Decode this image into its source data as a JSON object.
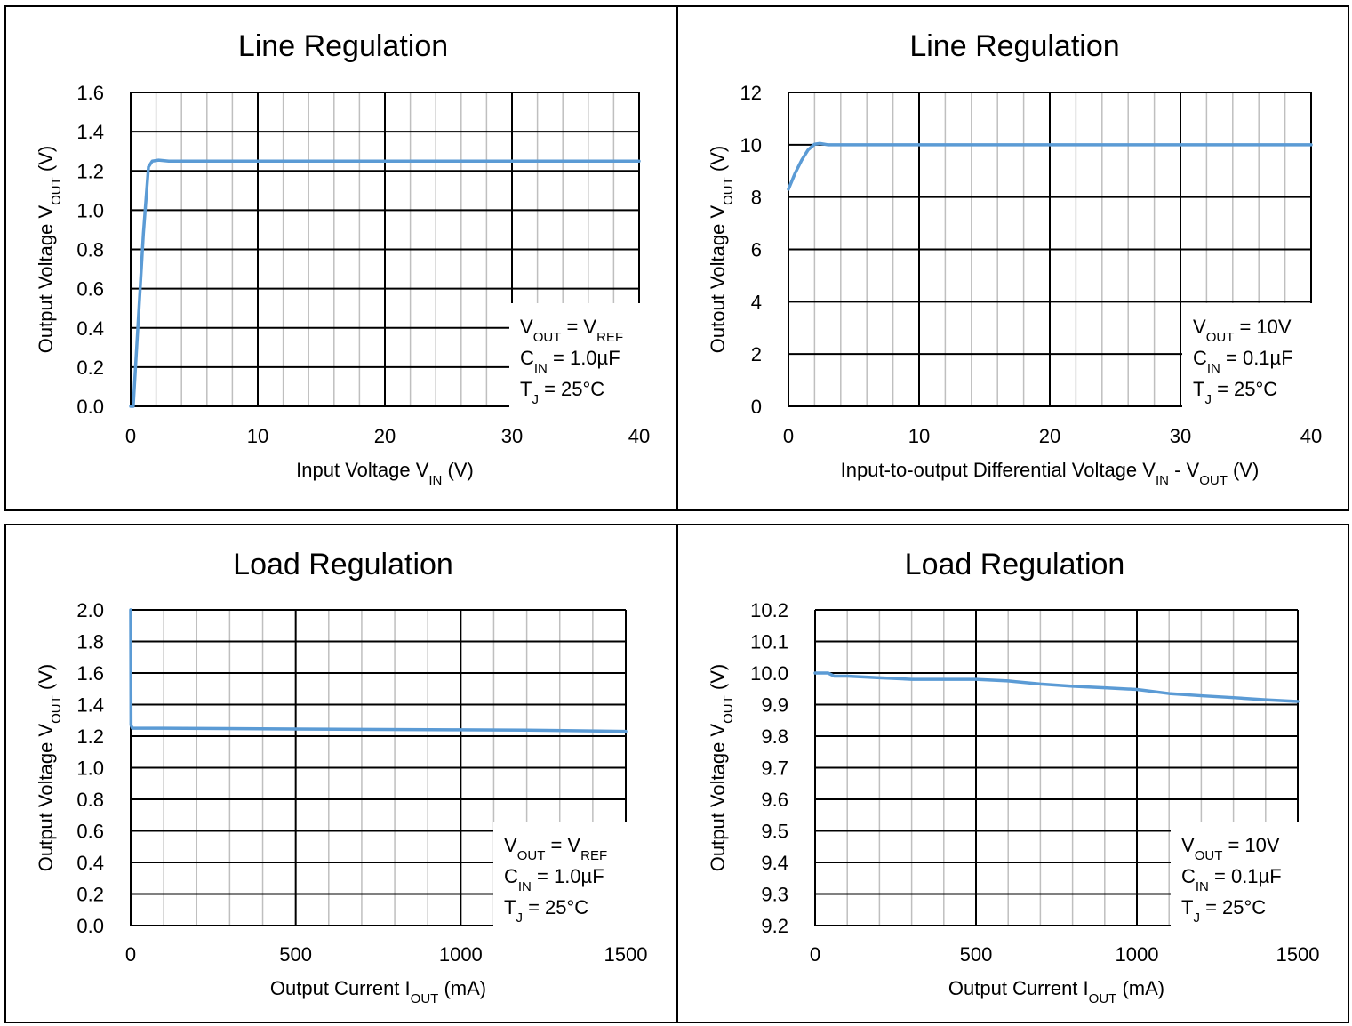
{
  "colors": {
    "series": "#5b9bd5",
    "major_grid": "#000000",
    "minor_grid": "#bfbfbf",
    "background": "#ffffff"
  },
  "chart_data": [
    {
      "type": "line",
      "title": "Line Regulation",
      "xlabel": {
        "main": "Input Voltage V",
        "sub": "IN",
        "tail": " (V)"
      },
      "ylabel": {
        "main": "Output Voltage V",
        "sub": "OUT",
        "tail": " (V)"
      },
      "xlim": [
        0,
        40
      ],
      "ylim": [
        0,
        1.6
      ],
      "xticks": [
        0,
        10,
        20,
        30,
        40
      ],
      "xtick_labels": [
        "0",
        "10",
        "20",
        "30",
        "40"
      ],
      "yticks": [
        0,
        0.2,
        0.4,
        0.6,
        0.8,
        1.0,
        1.2,
        1.4,
        1.6
      ],
      "ytick_labels": [
        "0.0",
        "0.2",
        "0.4",
        "0.6",
        "0.8",
        "1.0",
        "1.2",
        "1.4",
        "1.6"
      ],
      "minor_x_step": 2,
      "grid": true,
      "legend": {
        "position": "bottom-right",
        "lines": [
          {
            "parts": [
              [
                "V",
                ""
              ],
              [
                "OUT",
                "sub"
              ],
              [
                " = V",
                ""
              ],
              [
                "REF",
                "sub"
              ]
            ]
          },
          {
            "parts": [
              [
                "C",
                ""
              ],
              [
                "IN",
                "sub"
              ],
              [
                " = 1.0µF",
                ""
              ]
            ]
          },
          {
            "parts": [
              [
                "T",
                ""
              ],
              [
                "J",
                "sub"
              ],
              [
                " = 25°C",
                ""
              ]
            ]
          }
        ]
      },
      "series": [
        {
          "x": [
            0,
            0.2,
            1.0,
            1.4,
            1.7,
            2.2,
            3,
            10,
            20,
            30,
            40
          ],
          "y": [
            0,
            0,
            0.88,
            1.22,
            1.25,
            1.255,
            1.25,
            1.25,
            1.25,
            1.25,
            1.25
          ]
        }
      ]
    },
    {
      "type": "line",
      "title": "Line Regulation",
      "xlabel": {
        "main": "Input-to-output Differential Voltage V",
        "sub": "IN",
        "tail": " - V",
        "sub2": "OUT",
        "tail2": " (V)"
      },
      "ylabel": {
        "main": "Outout Voltage V",
        "sub": "OUT",
        "tail": " (V)"
      },
      "xlim": [
        0,
        40
      ],
      "ylim": [
        0,
        12
      ],
      "xticks": [
        0,
        10,
        20,
        30,
        40
      ],
      "xtick_labels": [
        "0",
        "10",
        "20",
        "30",
        "40"
      ],
      "yticks": [
        0,
        2,
        4,
        6,
        8,
        10,
        12
      ],
      "ytick_labels": [
        "0",
        "2",
        "4",
        "6",
        "8",
        "10",
        "12"
      ],
      "minor_x_step": 2,
      "grid": true,
      "legend": {
        "position": "bottom-right",
        "lines": [
          {
            "parts": [
              [
                "V",
                ""
              ],
              [
                "OUT",
                "sub"
              ],
              [
                " = 10V",
                ""
              ]
            ]
          },
          {
            "parts": [
              [
                "C",
                ""
              ],
              [
                "IN",
                "sub"
              ],
              [
                " = 0.1µF",
                ""
              ]
            ]
          },
          {
            "parts": [
              [
                "T",
                ""
              ],
              [
                "J",
                "sub"
              ],
              [
                " = 25°C",
                ""
              ]
            ]
          }
        ]
      },
      "series": [
        {
          "x": [
            0,
            0.5,
            1.0,
            1.5,
            2.0,
            2.4,
            3,
            10,
            20,
            30,
            40
          ],
          "y": [
            8.3,
            8.9,
            9.4,
            9.8,
            10.02,
            10.05,
            10.0,
            10.0,
            10.0,
            10.0,
            10.0
          ]
        }
      ]
    },
    {
      "type": "line",
      "title": "Load Regulation",
      "xlabel": {
        "main": "Output Current I",
        "sub": "OUT",
        "tail": " (mA)"
      },
      "ylabel": {
        "main": "Output Voltage V",
        "sub": "OUT",
        "tail": " (V)"
      },
      "xlim": [
        0,
        1500
      ],
      "ylim": [
        0,
        2.0
      ],
      "xticks": [
        0,
        500,
        1000,
        1500
      ],
      "xtick_labels": [
        "0",
        "500",
        "1000",
        "1500"
      ],
      "yticks": [
        0,
        0.2,
        0.4,
        0.6,
        0.8,
        1.0,
        1.2,
        1.4,
        1.6,
        1.8,
        2.0
      ],
      "ytick_labels": [
        "0.0",
        "0.2",
        "0.4",
        "0.6",
        "0.8",
        "1.0",
        "1.2",
        "1.4",
        "1.6",
        "1.8",
        "2.0"
      ],
      "minor_x_step": 100,
      "grid": true,
      "legend": {
        "position": "bottom-right",
        "lines": [
          {
            "parts": [
              [
                "V",
                ""
              ],
              [
                "OUT",
                "sub"
              ],
              [
                " = V",
                ""
              ],
              [
                "REF",
                "sub"
              ]
            ]
          },
          {
            "parts": [
              [
                "C",
                ""
              ],
              [
                "IN",
                "sub"
              ],
              [
                " = 1.0µF",
                ""
              ]
            ]
          },
          {
            "parts": [
              [
                "T",
                ""
              ],
              [
                "J",
                "sub"
              ],
              [
                " = 25°C",
                ""
              ]
            ]
          }
        ]
      },
      "series": [
        {
          "x": [
            0,
            1,
            5,
            100,
            500,
            1000,
            1200,
            1500
          ],
          "y": [
            2.0,
            1.27,
            1.25,
            1.25,
            1.245,
            1.24,
            1.238,
            1.23
          ]
        }
      ]
    },
    {
      "type": "line",
      "title": "Load Regulation",
      "xlabel": {
        "main": "Output Current I",
        "sub": "OUT",
        "tail": " (mA)"
      },
      "ylabel": {
        "main": "Output Voltage V",
        "sub": "OUT",
        "tail": " (V)"
      },
      "xlim": [
        0,
        1500
      ],
      "ylim": [
        9.2,
        10.2
      ],
      "xticks": [
        0,
        500,
        1000,
        1500
      ],
      "xtick_labels": [
        "0",
        "500",
        "1000",
        "1500"
      ],
      "yticks": [
        9.2,
        9.3,
        9.4,
        9.5,
        9.6,
        9.7,
        9.8,
        9.9,
        10.0,
        10.1,
        10.2
      ],
      "ytick_labels": [
        "9.2",
        "9.3",
        "9.4",
        "9.5",
        "9.6",
        "9.7",
        "9.8",
        "9.9",
        "10.0",
        "10.1",
        "10.2"
      ],
      "minor_x_step": 100,
      "grid": true,
      "legend": {
        "position": "bottom-right",
        "lines": [
          {
            "parts": [
              [
                "V",
                ""
              ],
              [
                "OUT",
                "sub"
              ],
              [
                " = 10V",
                ""
              ]
            ]
          },
          {
            "parts": [
              [
                "C",
                ""
              ],
              [
                "IN",
                "sub"
              ],
              [
                " = 0.1µF",
                ""
              ]
            ]
          },
          {
            "parts": [
              [
                "T",
                ""
              ],
              [
                "J",
                "sub"
              ],
              [
                " = 25°C",
                ""
              ]
            ]
          }
        ]
      },
      "series": [
        {
          "x": [
            0,
            20,
            40,
            60,
            100,
            200,
            300,
            400,
            500,
            600,
            700,
            800,
            900,
            1000,
            1100,
            1200,
            1300,
            1400,
            1500
          ],
          "y": [
            10.0,
            10.0,
            10.0,
            9.99,
            9.99,
            9.985,
            9.98,
            9.98,
            9.98,
            9.975,
            9.965,
            9.958,
            9.953,
            9.948,
            9.935,
            9.928,
            9.922,
            9.915,
            9.91
          ]
        }
      ]
    }
  ]
}
